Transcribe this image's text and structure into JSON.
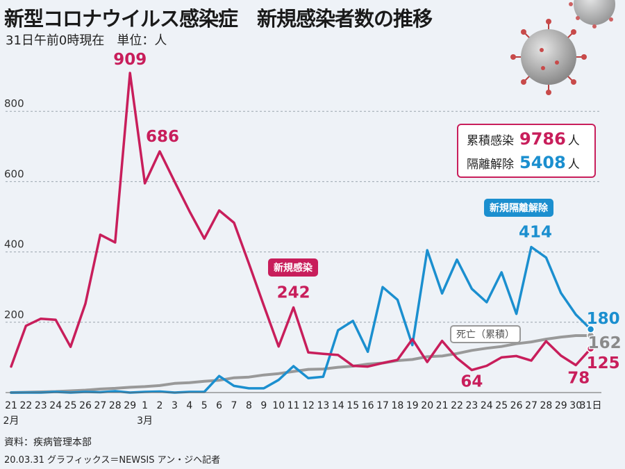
{
  "header": {
    "title": "新型コロナウイルス感染症　新規感染者数の推移",
    "subtitle": "31日午前0時現在　単位：人"
  },
  "summary": {
    "cumulative_label": "累積感染",
    "cumulative_value": "9786",
    "released_label": "隔離解除",
    "released_value": "5408",
    "unit": "人"
  },
  "legend_tags": {
    "new_infections": "新規感染",
    "new_releases": "新規隔離解除",
    "deaths": "死亡（累積）"
  },
  "footer": {
    "source": "資料：疾病管理本部",
    "credit": "20.03.31 グラフィックス＝NEWSIS アン・ジヘ記者"
  },
  "chart_data": {
    "type": "line",
    "x": [
      "21",
      "22",
      "23",
      "24",
      "25",
      "26",
      "27",
      "28",
      "29",
      "1",
      "2",
      "3",
      "4",
      "5",
      "6",
      "7",
      "8",
      "9",
      "10",
      "11",
      "12",
      "13",
      "14",
      "15",
      "16",
      "17",
      "18",
      "19",
      "20",
      "21",
      "22",
      "23",
      "24",
      "25",
      "26",
      "27",
      "28",
      "29",
      "30",
      "31日"
    ],
    "month_labels": [
      "2月",
      "3月"
    ],
    "ylim": [
      0,
      900
    ],
    "yticks": [
      200,
      400,
      600,
      800
    ],
    "grid": true,
    "series": [
      {
        "name": "新規感染",
        "color": "#c81e5b",
        "values": [
          74,
          190,
          210,
          207,
          130,
          253,
          449,
          427,
          909,
          595,
          686,
          600,
          516,
          438,
          518,
          483,
          367,
          248,
          131,
          242,
          114,
          110,
          107,
          76,
          74,
          84,
          93,
          152,
          87,
          147,
          98,
          64,
          76,
          100,
          104,
          91,
          146,
          105,
          78,
          125
        ],
        "labeled_values": [
          909,
          686,
          242,
          64,
          78,
          125
        ]
      },
      {
        "name": "新規隔離解除",
        "color": "#1b8fcf",
        "values": [
          0,
          0,
          0,
          2,
          0,
          2,
          1,
          4,
          0,
          2,
          3,
          0,
          2,
          2,
          47,
          19,
          12,
          12,
          36,
          75,
          41,
          45,
          177,
          204,
          116,
          300,
          264,
          135,
          405,
          282,
          378,
          295,
          257,
          342,
          224,
          414,
          384,
          283,
          222,
          180
        ],
        "labeled_values": [
          414,
          180
        ]
      },
      {
        "name": "死亡（累積）",
        "color": "#999999",
        "values": [
          0,
          1,
          2,
          3,
          5,
          7,
          10,
          12,
          15,
          17,
          20,
          26,
          28,
          32,
          35,
          42,
          44,
          50,
          54,
          60,
          66,
          67,
          72,
          75,
          81,
          84,
          91,
          94,
          102,
          104,
          111,
          120,
          126,
          131,
          139,
          144,
          152,
          158,
          162,
          162
        ],
        "labeled_values": [
          162
        ]
      }
    ]
  }
}
